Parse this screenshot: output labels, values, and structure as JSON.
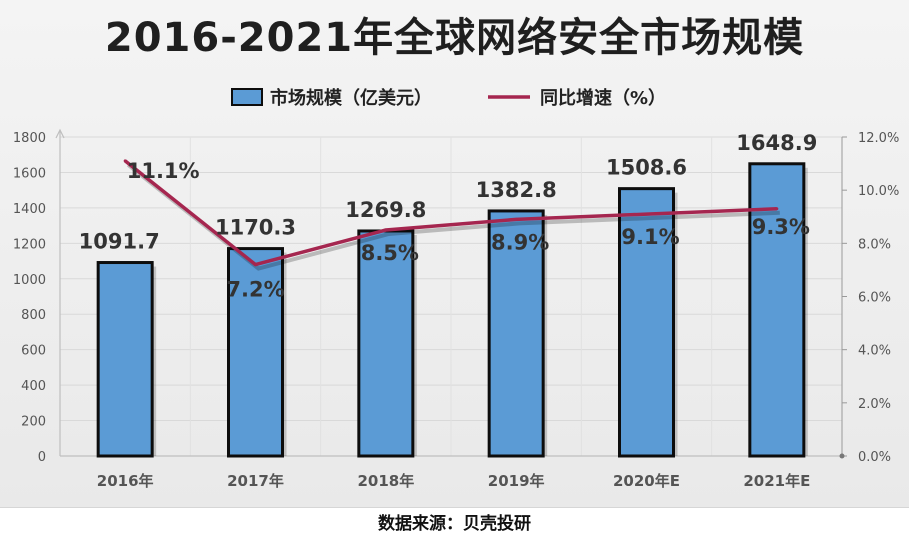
{
  "chart_data": {
    "type": "bar",
    "title": "2016-2021年全球网络安全市场规模",
    "categories": [
      "2016年",
      "2017年",
      "2018年",
      "2019年",
      "2020年E",
      "2021年E"
    ],
    "series": [
      {
        "name": "市场规模（亿美元）",
        "type": "bar",
        "axis": "left",
        "values": [
          1091.7,
          1170.3,
          1269.8,
          1382.8,
          1508.6,
          1648.9
        ],
        "labels": [
          "1091.7",
          "1170.3",
          "1269.8",
          "1382.8",
          "1508.6",
          "1648.9"
        ],
        "color": "#5b9bd5"
      },
      {
        "name": "同比增速（%）",
        "type": "line",
        "axis": "right",
        "values": [
          11.1,
          7.2,
          8.5,
          8.9,
          9.1,
          9.3
        ],
        "labels": [
          "11.1%",
          "7.2%",
          "8.5%",
          "8.9%",
          "9.1%",
          "9.3%"
        ],
        "color": "#a5264f"
      }
    ],
    "y_left": {
      "range": [
        0,
        1800
      ],
      "ticks": [
        "0",
        "200",
        "400",
        "600",
        "800",
        "1000",
        "1200",
        "1400",
        "1600",
        "1800"
      ]
    },
    "y_right": {
      "range": [
        0,
        12
      ],
      "ticks": [
        "0.0%",
        "2.0%",
        "4.0%",
        "6.0%",
        "8.0%",
        "10.0%",
        "12.0%"
      ]
    },
    "grid": true,
    "legend": "top-center"
  },
  "source": "数据来源：贝壳投研"
}
